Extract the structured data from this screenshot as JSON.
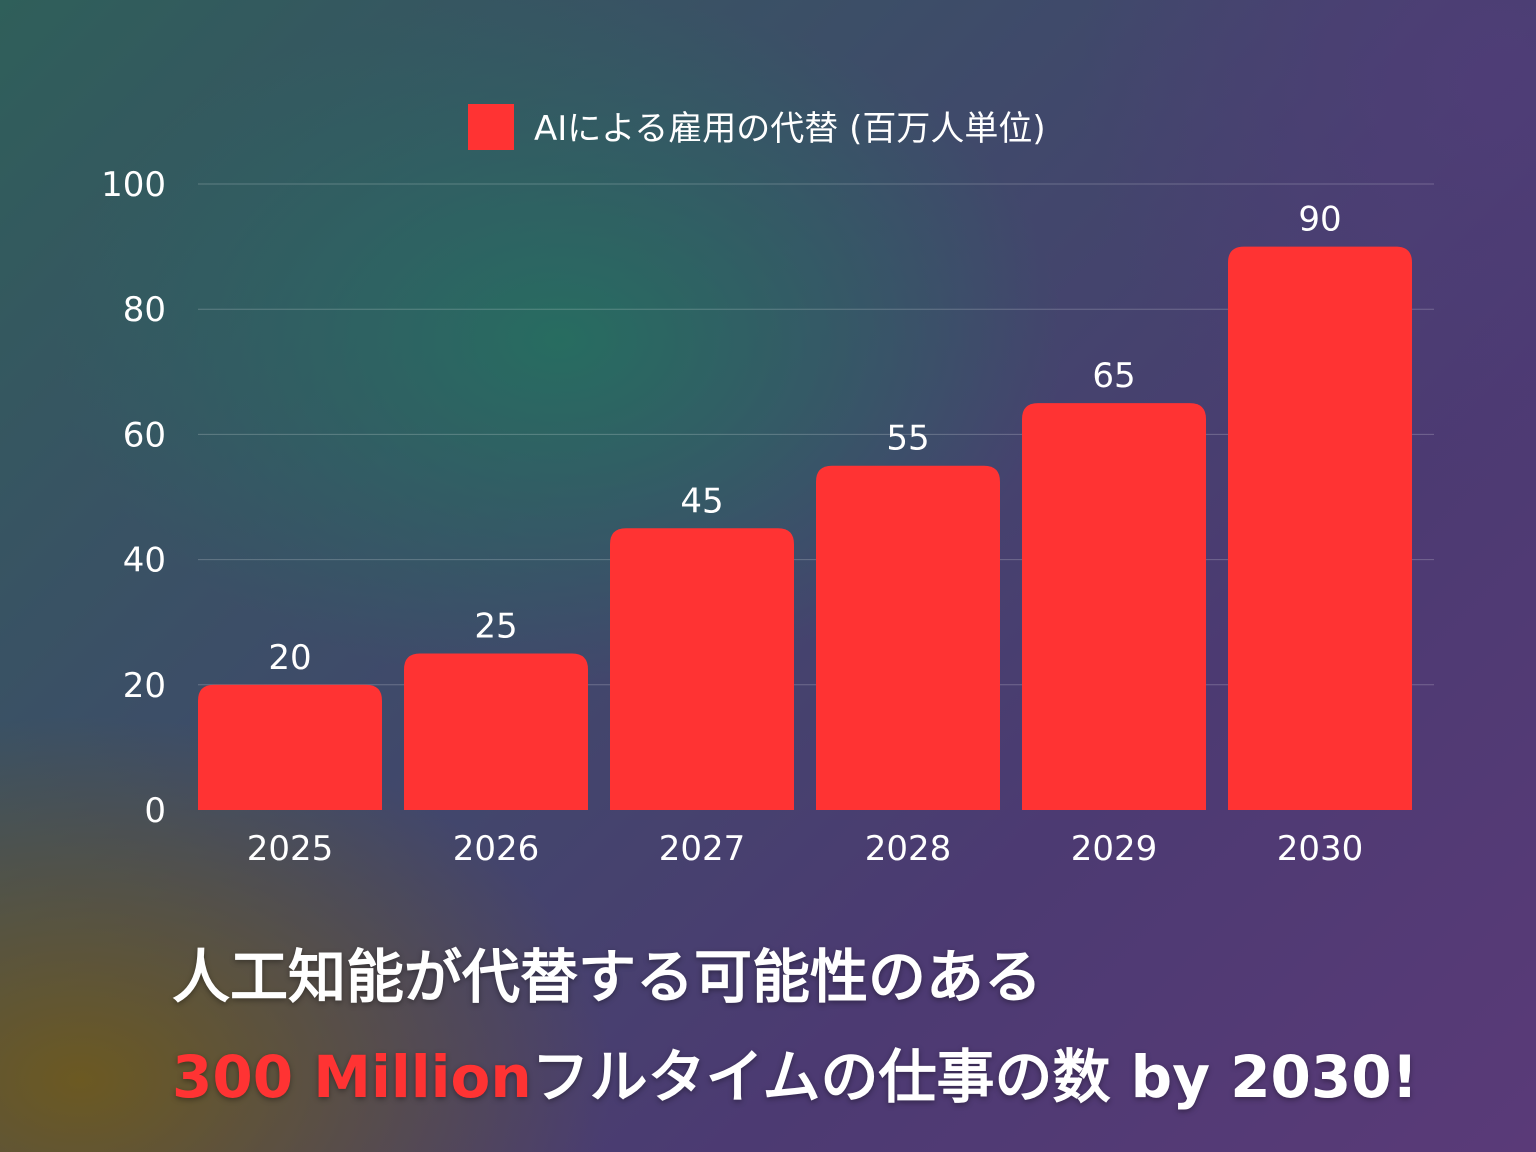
{
  "colors": {
    "bar": "#ff3333",
    "grid": "rgba(255,255,255,0.22)",
    "text": "#ffffff"
  },
  "chart_data": {
    "type": "bar",
    "categories": [
      "2025",
      "2026",
      "2027",
      "2028",
      "2029",
      "2030"
    ],
    "series": [
      {
        "name": "AIによる雇用の代替 (百万人単位)",
        "values": [
          20,
          25,
          45,
          55,
          65,
          90
        ]
      }
    ],
    "ylim": [
      0,
      100
    ],
    "yticks": [
      0,
      20,
      40,
      60,
      80,
      100
    ],
    "xlabel": "",
    "ylabel": "",
    "grid": true,
    "legend_position": "top-center",
    "data_labels": true
  },
  "headline": {
    "line1": "人工知能が代替する可能性のある",
    "line2_accent": "300 Million",
    "line2_rest": "フルタイムの仕事の数 by 2030!"
  }
}
